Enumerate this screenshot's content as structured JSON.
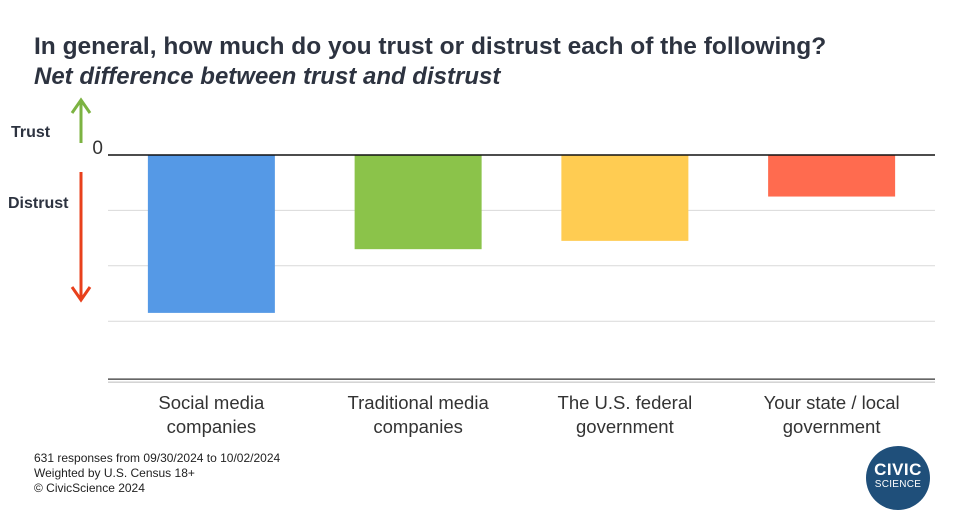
{
  "title": "In general, how much do you trust or distrust each of the following?",
  "subtitle": "Net difference between trust and distrust",
  "indicators": {
    "trust_label": "Trust",
    "distrust_label": "Distrust"
  },
  "footer": {
    "line1": "631 responses from 09/30/2024 to 10/02/2024",
    "line2": "Weighted by U.S. Census 18+",
    "line3": "© CivicScience 2024"
  },
  "logo": {
    "line1": "CIVIC",
    "line2": "SCIENCE"
  },
  "colors": {
    "trust_arrow": "#7cb342",
    "distrust_arrow": "#e8401c",
    "logo_bg": "#1f4f7a"
  },
  "chart_data": {
    "type": "bar",
    "categories": [
      [
        "Social media",
        "companies"
      ],
      [
        "Traditional media",
        "companies"
      ],
      [
        "The U.S. federal",
        "government"
      ],
      [
        "Your state / local",
        "government"
      ]
    ],
    "values": [
      -57,
      -34,
      -31,
      -15
    ],
    "colors": [
      "#5599e6",
      "#8bc34a",
      "#ffcc52",
      "#ff6b4f"
    ],
    "zero_tick_label": "0",
    "ylim": [
      -82,
      0
    ],
    "gridlines": [
      -20,
      -40,
      -60
    ],
    "grid": true,
    "legend": "none"
  }
}
